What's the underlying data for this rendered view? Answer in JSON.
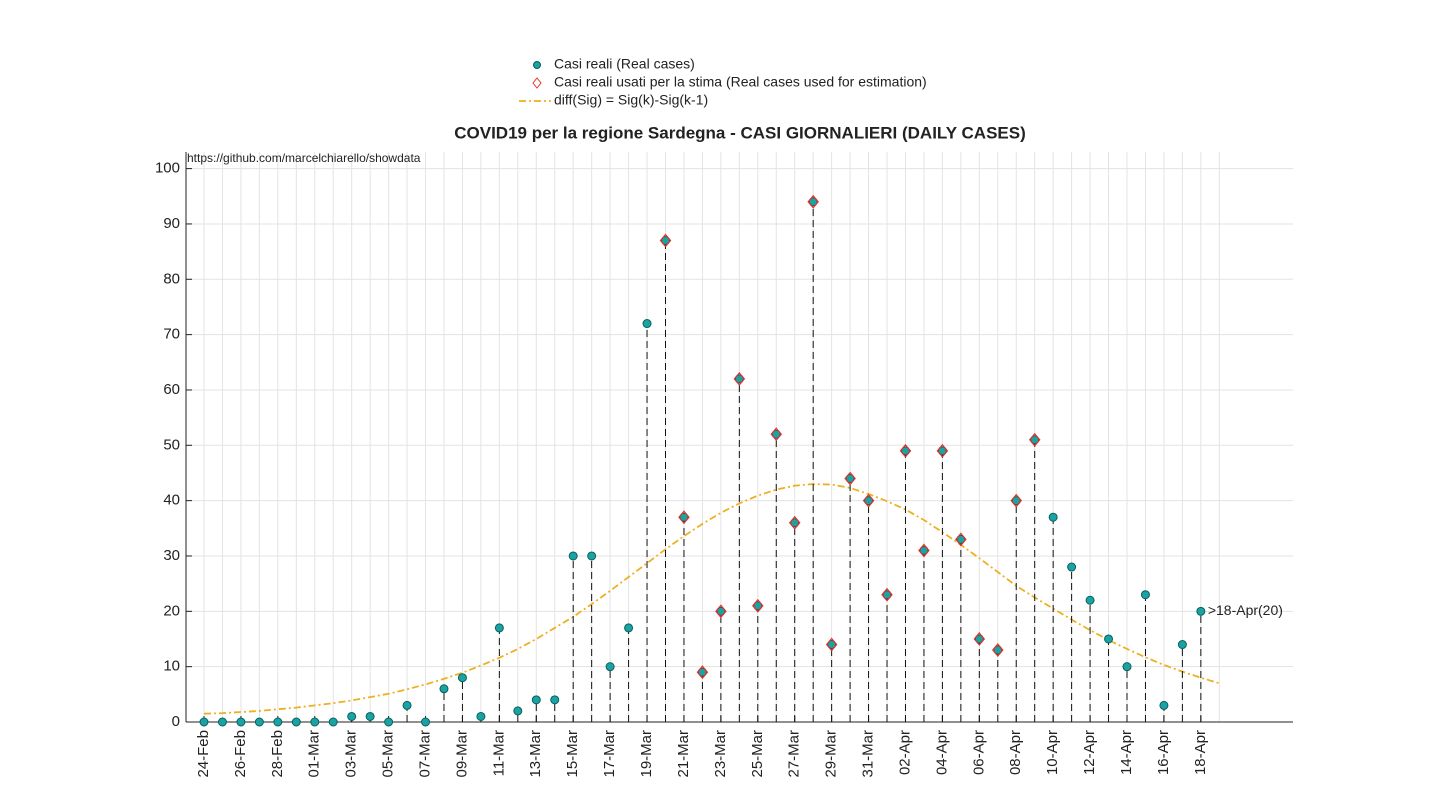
{
  "chart_data": {
    "type": "stem",
    "title": "COVID19 per la regione Sardegna - CASI GIORNALIERI (DAILY CASES)",
    "annotations": [
      "https://github.com/marcelchiarello/showdata",
      ">18-Apr(20)"
    ],
    "categories": [
      "24-Feb",
      null,
      "26-Feb",
      null,
      "28-Feb",
      null,
      "01-Mar",
      null,
      "03-Mar",
      null,
      "05-Mar",
      null,
      "07-Mar",
      null,
      "09-Mar",
      null,
      "11-Mar",
      null,
      "13-Mar",
      null,
      "15-Mar",
      null,
      "17-Mar",
      null,
      "19-Mar",
      null,
      "21-Mar",
      null,
      "23-Mar",
      null,
      "25-Mar",
      null,
      "27-Mar",
      null,
      "29-Mar",
      null,
      "31-Mar",
      null,
      "02-Apr",
      null,
      "04-Apr",
      null,
      "06-Apr",
      null,
      "08-Apr",
      null,
      "10-Apr",
      null,
      "12-Apr",
      null,
      "14-Apr",
      null,
      "16-Apr",
      null,
      "18-Apr",
      null
    ],
    "series": [
      {
        "name": "Casi reali (Real cases)",
        "color": "#19a3a3",
        "values": [
          0,
          0,
          0,
          0,
          0,
          0,
          0,
          0,
          1,
          1,
          0,
          3,
          0,
          6,
          8,
          1,
          17,
          2,
          4,
          4,
          30,
          30,
          10,
          17,
          72,
          87,
          37,
          9,
          20,
          62,
          21,
          52,
          36,
          94,
          14,
          44,
          40,
          23,
          49,
          31,
          49,
          33,
          15,
          13,
          40,
          51,
          37,
          28,
          22,
          15,
          10,
          23,
          3,
          14,
          20,
          null
        ]
      },
      {
        "name": "Casi reali usati per la stima (Real cases used for estimation)",
        "color": "#e8302b",
        "values": [
          null,
          null,
          null,
          null,
          null,
          null,
          null,
          null,
          null,
          null,
          null,
          null,
          null,
          null,
          null,
          null,
          null,
          null,
          null,
          null,
          null,
          null,
          null,
          null,
          null,
          87,
          37,
          9,
          20,
          62,
          21,
          52,
          36,
          94,
          14,
          44,
          40,
          23,
          49,
          31,
          49,
          33,
          15,
          13,
          40,
          51,
          null,
          null,
          null,
          null,
          null,
          null,
          null,
          null,
          null,
          null
        ]
      },
      {
        "name": "diff(Sig) = Sig(k)-Sig(k-1)",
        "color": "#edb120",
        "values": [
          1.5,
          1.6,
          1.8,
          2.0,
          2.3,
          2.6,
          3.0,
          3.4,
          3.9,
          4.5,
          5.1,
          5.9,
          6.8,
          7.8,
          8.9,
          10.2,
          11.6,
          13.2,
          15,
          17,
          19,
          21.3,
          23.7,
          26.2,
          28.7,
          31.2,
          33.6,
          35.8,
          37.8,
          39.5,
          40.9,
          42,
          42.7,
          43,
          42.9,
          42.3,
          41.2,
          39.9,
          38.4,
          36.5,
          34.3,
          32,
          29.6,
          27.1,
          24.6,
          22.5,
          20.5,
          18.5,
          16.6,
          14.8,
          13.2,
          11.7,
          10.3,
          9.1,
          8.0,
          7.0
        ]
      }
    ],
    "ylim": [
      0,
      103
    ],
    "yticks": [
      0,
      10,
      20,
      30,
      40,
      50,
      60,
      70,
      80,
      90,
      100
    ],
    "grid": true
  }
}
